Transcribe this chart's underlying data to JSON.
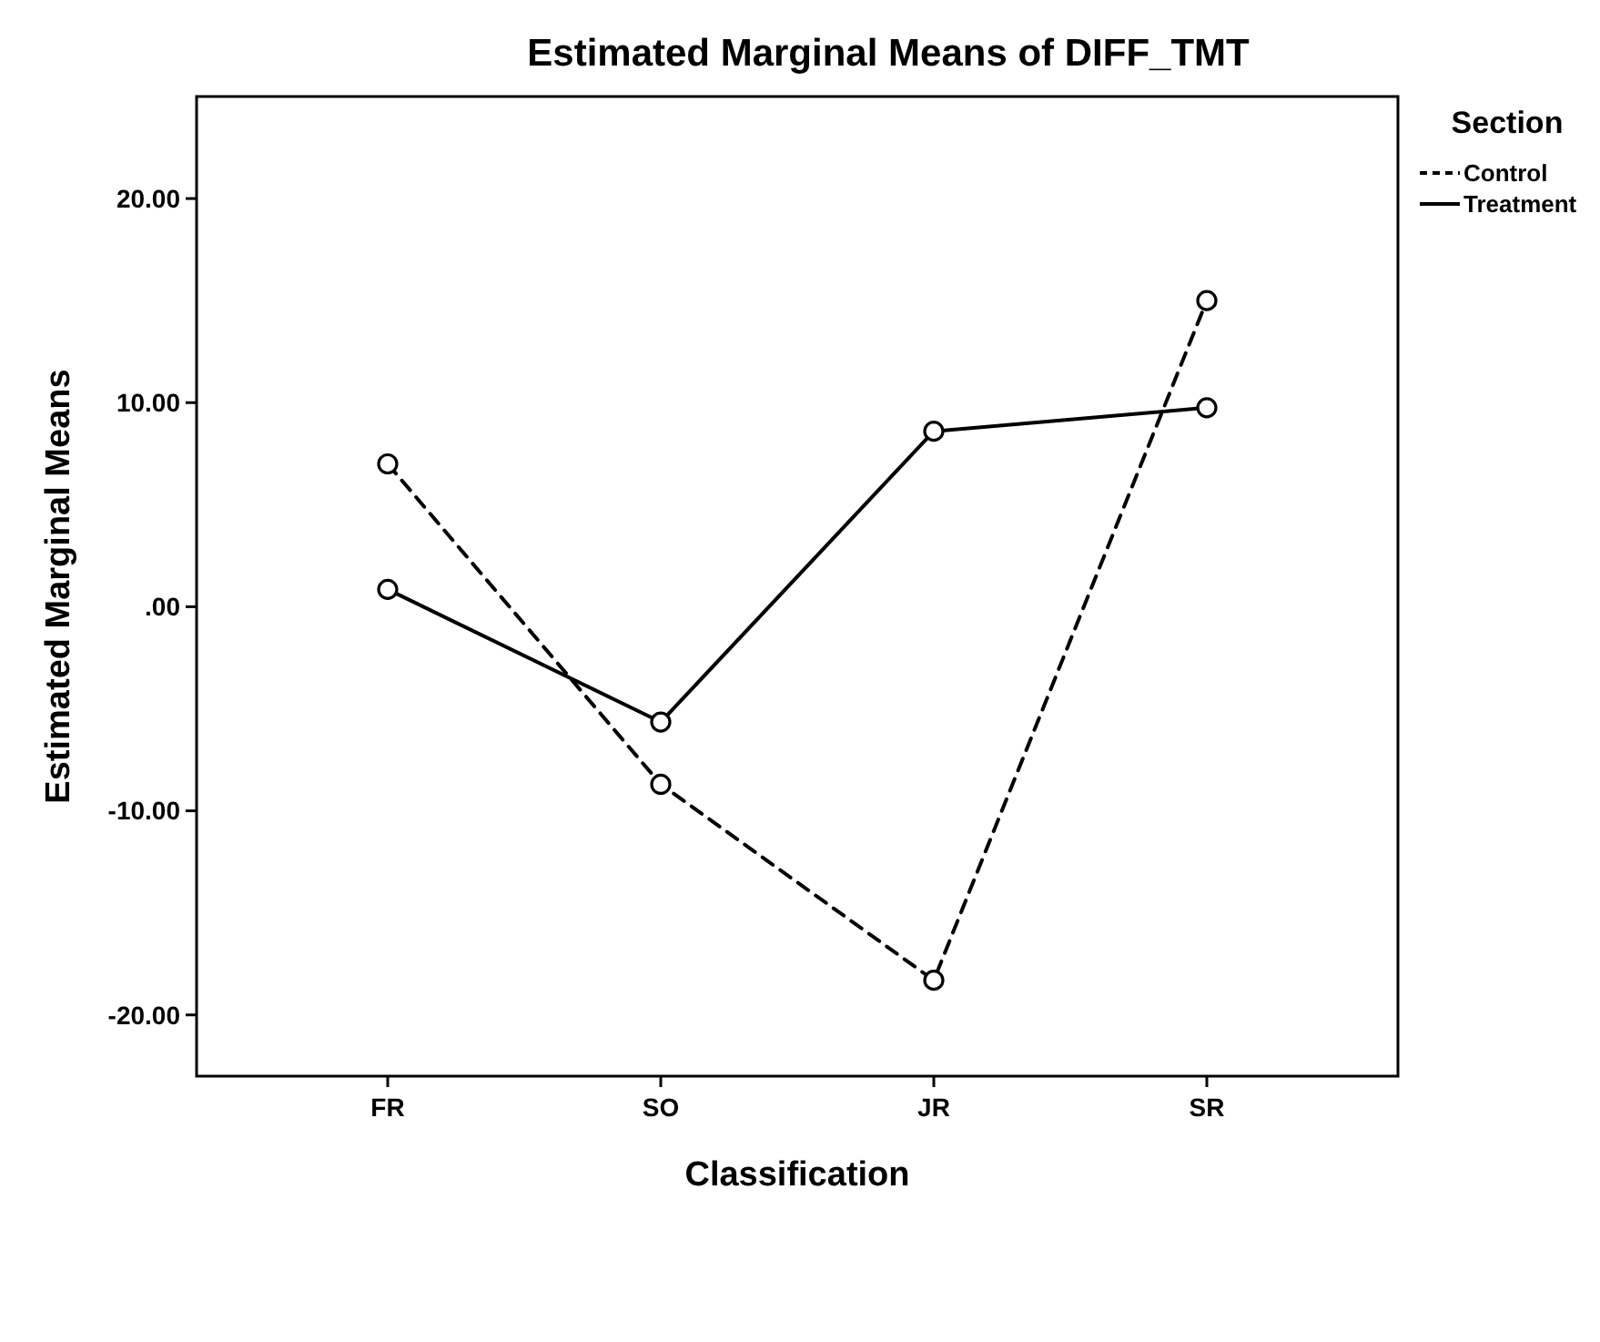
{
  "chart_data": {
    "type": "line",
    "title": "Estimated Marginal Means of DIFF_TMT",
    "xlabel": "Classification",
    "ylabel": "Estimated Marginal Means",
    "legend_title": "Section",
    "categories": [
      "FR",
      "SO",
      "JR",
      "SR"
    ],
    "series": [
      {
        "name": "Control",
        "color": "#000000",
        "line_style": "dashed",
        "values": [
          7.0,
          -8.7,
          -18.3,
          15.0
        ]
      },
      {
        "name": "Treatment",
        "color": "#000000",
        "line_style": "solid",
        "values": [
          0.85,
          -5.65,
          8.6,
          9.75
        ]
      }
    ],
    "ylim": [
      -23,
      25
    ],
    "yticks": [
      {
        "value": -20,
        "label": "-20.00"
      },
      {
        "value": -10,
        "label": "-10.00"
      },
      {
        "value": 0,
        "label": ".00"
      },
      {
        "value": 10,
        "label": "10.00"
      },
      {
        "value": 20,
        "label": "20.00"
      }
    ],
    "marker": "circle",
    "legend": "top right",
    "grid": false
  }
}
